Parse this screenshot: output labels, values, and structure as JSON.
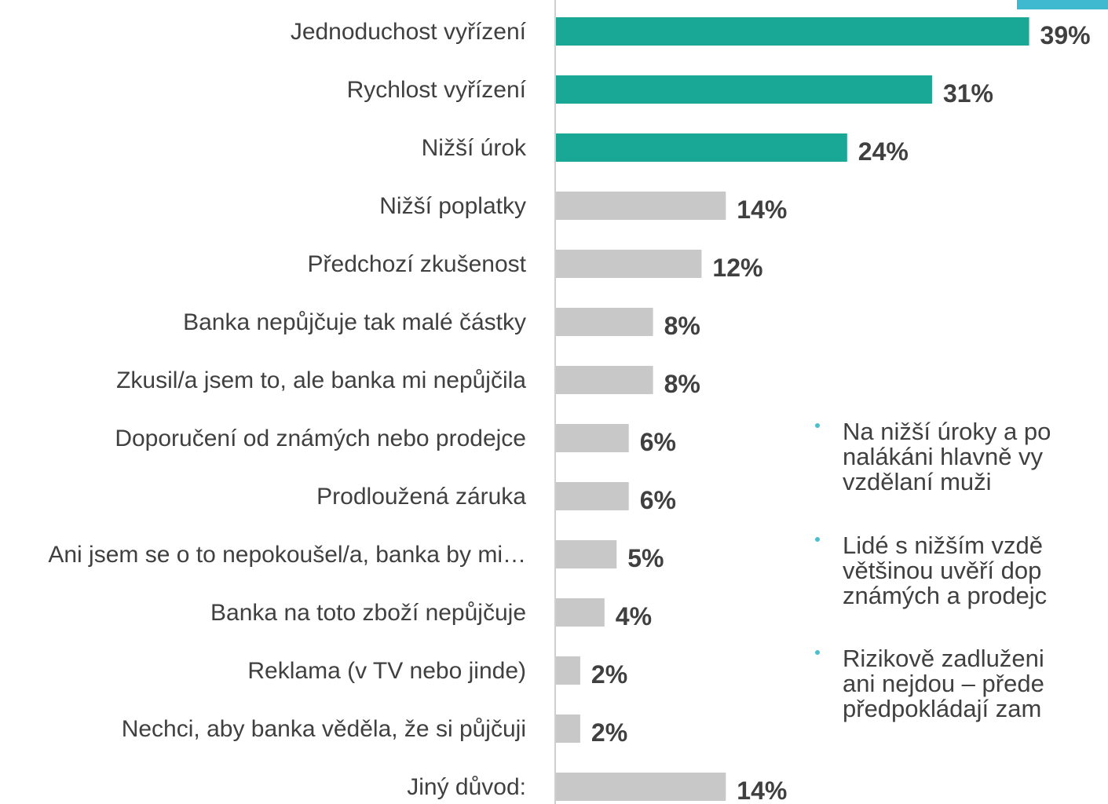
{
  "chart_data": {
    "type": "bar",
    "orientation": "horizontal",
    "categories": [
      "Jednoduchost vyřízení",
      "Rychlost vyřízení",
      "Nižší úrok",
      "Nižší poplatky",
      "Předchozí zkušenost",
      "Banka nepůjčuje tak malé částky",
      "Zkusil/a jsem to, ale banka mi nepůjčila",
      "Doporučení od známých nebo prodejce",
      "Prodloužená záruka",
      "Ani jsem se o to nepokoušel/a, banka by mi…",
      "Banka na toto zboží nepůjčuje",
      "Reklama (v TV nebo jinde)",
      "Nechci, aby banka věděla, že si půjčuji",
      "Jiný důvod:"
    ],
    "values": [
      39,
      31,
      24,
      14,
      12,
      8,
      8,
      6,
      6,
      5,
      4,
      2,
      2,
      14
    ],
    "value_labels": [
      "39%",
      "31%",
      "24%",
      "14%",
      "12%",
      "8%",
      "8%",
      "6%",
      "6%",
      "5%",
      "4%",
      "2%",
      "2%",
      "14%"
    ],
    "colors": [
      "#1aa896",
      "#1aa896",
      "#1aa896",
      "#c8c8c8",
      "#c8c8c8",
      "#c8c8c8",
      "#c8c8c8",
      "#c8c8c8",
      "#c8c8c8",
      "#c8c8c8",
      "#c8c8c8",
      "#c8c8c8",
      "#c8c8c8",
      "#c8c8c8"
    ]
  },
  "bullets": [
    [
      "Na nižší úroky a po",
      "nalákáni hlavně vy",
      "vzdělaní muži"
    ],
    [
      "Lidé s nižším vzdě",
      "většinou uvěří dop",
      "známých a prodejc"
    ],
    [
      "Rizikově zadluženi",
      "ani nejdou – přede",
      "předpokládají zam"
    ]
  ]
}
